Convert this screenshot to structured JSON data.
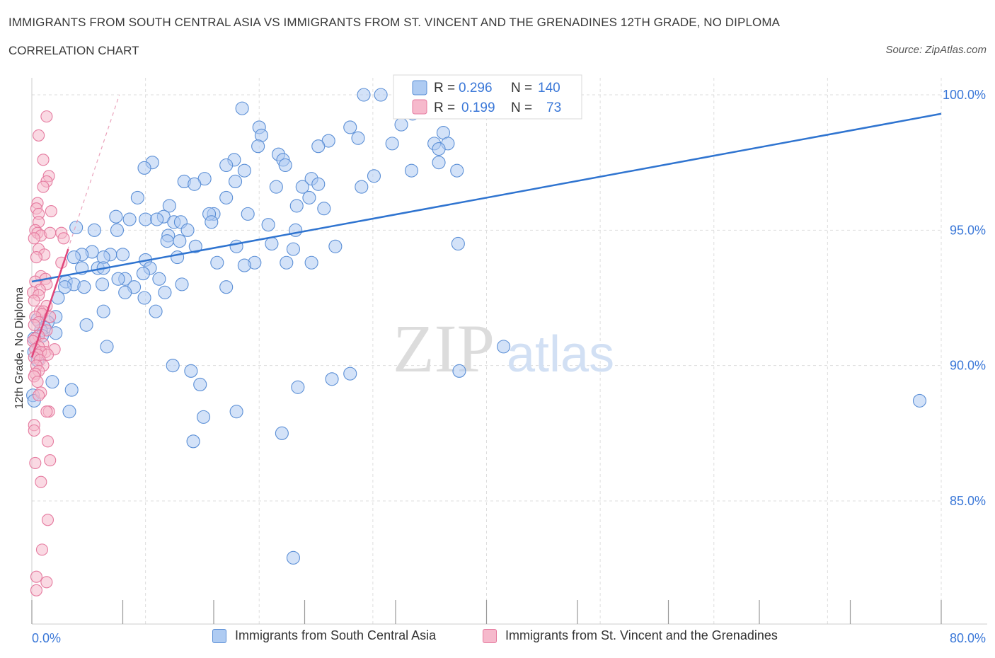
{
  "header": {
    "title": "IMMIGRANTS FROM SOUTH CENTRAL ASIA VS IMMIGRANTS FROM ST. VINCENT AND THE GRENADINES 12TH GRADE, NO DIPLOMA",
    "subtitle": "CORRELATION CHART",
    "source": "Source: ZipAtlas.com"
  },
  "colors": {
    "blue_fill": "#aecbf2",
    "blue_stroke": "#5b8fd6",
    "blue_line": "#2f74d0",
    "pink_fill": "#f6b9cc",
    "pink_stroke": "#e57a9f",
    "pink_line": "#e0457a",
    "axis_label": "#3b78d8",
    "grid": "#dddddd"
  },
  "watermark": {
    "part1": "ZIP",
    "part2": "atlas"
  },
  "legend_box": {
    "row1": {
      "r_label": "R = ",
      "r_value": "0.296",
      "n_label": "N = ",
      "n_value": "140"
    },
    "row2": {
      "r_label": "R = ",
      "r_value": "0.199",
      "n_label": "N = ",
      "n_value": "73"
    }
  },
  "chart_data": {
    "type": "scatter",
    "title": "IMMIGRANTS FROM SOUTH CENTRAL ASIA VS IMMIGRANTS FROM ST. VINCENT AND THE GRENADINES 12TH GRADE, NO DIPLOMA",
    "subtitle": "CORRELATION CHART",
    "ylabel": "12th Grade, No Diploma",
    "xlabel": "",
    "xlim": [
      0,
      80
    ],
    "ylim": [
      80,
      100.5
    ],
    "x_tick_labels": [
      "0.0%",
      "80.0%"
    ],
    "y_tick_labels": [
      {
        "value": 100,
        "label": "100.0%"
      },
      {
        "value": 95,
        "label": "95.0%"
      },
      {
        "value": 90,
        "label": "90.0%"
      },
      {
        "value": 85,
        "label": "85.0%"
      }
    ],
    "grid": true,
    "legend_position": "bottom",
    "series": [
      {
        "name": "Immigrants from South Central Asia",
        "color": "#aecbf2",
        "trend": {
          "x": [
            0,
            80
          ],
          "y": [
            93.1,
            99.3
          ]
        },
        "points": [
          [
            29.2,
            100.0
          ],
          [
            30.7,
            100.0
          ],
          [
            18.5,
            99.5
          ],
          [
            33.5,
            99.3
          ],
          [
            20.0,
            98.8
          ],
          [
            28.0,
            98.8
          ],
          [
            32.5,
            98.9
          ],
          [
            36.2,
            98.6
          ],
          [
            20.2,
            98.5
          ],
          [
            28.7,
            98.4
          ],
          [
            26.1,
            98.3
          ],
          [
            31.7,
            98.2
          ],
          [
            35.4,
            98.2
          ],
          [
            36.6,
            98.2
          ],
          [
            19.9,
            98.1
          ],
          [
            25.2,
            98.1
          ],
          [
            35.8,
            98.0
          ],
          [
            21.7,
            97.8
          ],
          [
            22.1,
            97.6
          ],
          [
            17.8,
            97.6
          ],
          [
            35.8,
            97.5
          ],
          [
            10.6,
            97.5
          ],
          [
            17.1,
            97.4
          ],
          [
            22.3,
            97.4
          ],
          [
            9.9,
            97.3
          ],
          [
            18.7,
            97.2
          ],
          [
            33.4,
            97.2
          ],
          [
            37.4,
            97.2
          ],
          [
            30.1,
            97.0
          ],
          [
            24.6,
            96.9
          ],
          [
            15.2,
            96.9
          ],
          [
            17.9,
            96.8
          ],
          [
            13.4,
            96.8
          ],
          [
            14.3,
            96.7
          ],
          [
            25.2,
            96.7
          ],
          [
            29.0,
            96.6
          ],
          [
            23.8,
            96.6
          ],
          [
            21.5,
            96.6
          ],
          [
            9.3,
            96.2
          ],
          [
            17.1,
            96.2
          ],
          [
            24.4,
            96.2
          ],
          [
            12.1,
            95.9
          ],
          [
            23.3,
            95.9
          ],
          [
            25.7,
            95.8
          ],
          [
            16.0,
            95.6
          ],
          [
            7.4,
            95.5
          ],
          [
            11.6,
            95.5
          ],
          [
            19.0,
            95.6
          ],
          [
            15.6,
            95.6
          ],
          [
            8.6,
            95.4
          ],
          [
            10.0,
            95.4
          ],
          [
            11.0,
            95.4
          ],
          [
            12.5,
            95.3
          ],
          [
            13.1,
            95.3
          ],
          [
            15.8,
            95.3
          ],
          [
            20.8,
            95.2
          ],
          [
            3.9,
            95.1
          ],
          [
            5.5,
            95.0
          ],
          [
            7.5,
            95.0
          ],
          [
            13.7,
            95.0
          ],
          [
            23.2,
            95.0
          ],
          [
            12.0,
            94.8
          ],
          [
            11.9,
            94.6
          ],
          [
            13.0,
            94.6
          ],
          [
            21.1,
            94.5
          ],
          [
            37.5,
            94.5
          ],
          [
            18.0,
            94.4
          ],
          [
            26.7,
            94.4
          ],
          [
            14.4,
            94.4
          ],
          [
            5.3,
            94.2
          ],
          [
            6.9,
            94.1
          ],
          [
            23.0,
            94.3
          ],
          [
            4.4,
            94.1
          ],
          [
            12.8,
            94.0
          ],
          [
            3.7,
            94.0
          ],
          [
            8.0,
            94.1
          ],
          [
            10.0,
            93.9
          ],
          [
            6.3,
            94.0
          ],
          [
            16.3,
            93.8
          ],
          [
            19.6,
            93.8
          ],
          [
            22.4,
            93.8
          ],
          [
            24.6,
            93.8
          ],
          [
            18.7,
            93.7
          ],
          [
            5.8,
            93.6
          ],
          [
            6.3,
            93.6
          ],
          [
            4.4,
            93.6
          ],
          [
            10.4,
            93.6
          ],
          [
            9.8,
            93.4
          ],
          [
            8.2,
            93.2
          ],
          [
            7.6,
            93.2
          ],
          [
            11.2,
            93.2
          ],
          [
            3.0,
            93.1
          ],
          [
            6.2,
            93.0
          ],
          [
            13.2,
            93.0
          ],
          [
            3.7,
            93.0
          ],
          [
            2.9,
            92.9
          ],
          [
            4.6,
            92.9
          ],
          [
            9.0,
            92.9
          ],
          [
            17.1,
            92.9
          ],
          [
            8.2,
            92.7
          ],
          [
            11.7,
            92.7
          ],
          [
            9.9,
            92.5
          ],
          [
            2.3,
            92.5
          ],
          [
            6.3,
            92.0
          ],
          [
            10.9,
            92.0
          ],
          [
            2.1,
            91.8
          ],
          [
            0.5,
            91.7
          ],
          [
            1.4,
            91.6
          ],
          [
            4.8,
            91.5
          ],
          [
            1.1,
            91.4
          ],
          [
            0.8,
            91.3
          ],
          [
            2.1,
            91.2
          ],
          [
            0.9,
            91.1
          ],
          [
            0.2,
            91.0
          ],
          [
            6.6,
            90.7
          ],
          [
            0.2,
            90.5
          ],
          [
            0.5,
            90.2
          ],
          [
            12.4,
            90.0
          ],
          [
            14.0,
            89.8
          ],
          [
            37.6,
            89.8
          ],
          [
            28.0,
            89.7
          ],
          [
            26.4,
            89.5
          ],
          [
            1.8,
            89.4
          ],
          [
            14.8,
            89.3
          ],
          [
            23.4,
            89.2
          ],
          [
            3.5,
            89.1
          ],
          [
            0.1,
            88.9
          ],
          [
            0.2,
            88.7
          ],
          [
            78.1,
            88.7
          ],
          [
            3.3,
            88.3
          ],
          [
            18.0,
            88.3
          ],
          [
            15.1,
            88.1
          ],
          [
            14.2,
            87.2
          ],
          [
            22.0,
            87.5
          ],
          [
            23.0,
            82.9
          ],
          [
            41.5,
            90.7
          ]
        ]
      },
      {
        "name": "Immigrants from St. Vincent and the Grenadines",
        "color": "#f6b9cc",
        "trend": {
          "x": [
            0,
            3.2
          ],
          "y": [
            90.3,
            94.3
          ]
        },
        "trend_dashed": {
          "x": [
            0,
            7.7
          ],
          "y": [
            90.3,
            100.0
          ]
        },
        "points": [
          [
            1.3,
            99.2
          ],
          [
            0.6,
            98.5
          ],
          [
            1.0,
            97.6
          ],
          [
            1.5,
            97.0
          ],
          [
            1.3,
            96.8
          ],
          [
            1.0,
            96.6
          ],
          [
            0.5,
            96.0
          ],
          [
            0.4,
            95.8
          ],
          [
            1.7,
            95.7
          ],
          [
            0.6,
            95.6
          ],
          [
            0.6,
            95.3
          ],
          [
            0.3,
            95.0
          ],
          [
            0.5,
            94.9
          ],
          [
            0.8,
            94.8
          ],
          [
            1.6,
            94.9
          ],
          [
            2.6,
            94.9
          ],
          [
            0.2,
            94.7
          ],
          [
            2.8,
            94.7
          ],
          [
            0.6,
            94.3
          ],
          [
            1.1,
            94.1
          ],
          [
            0.4,
            94.0
          ],
          [
            2.6,
            93.8
          ],
          [
            0.8,
            93.3
          ],
          [
            1.2,
            93.2
          ],
          [
            0.3,
            93.1
          ],
          [
            1.3,
            93.0
          ],
          [
            0.7,
            92.8
          ],
          [
            0.1,
            92.7
          ],
          [
            0.6,
            92.6
          ],
          [
            0.2,
            92.4
          ],
          [
            1.3,
            92.2
          ],
          [
            0.7,
            92.0
          ],
          [
            1.0,
            92.0
          ],
          [
            0.9,
            91.9
          ],
          [
            0.3,
            91.8
          ],
          [
            1.6,
            91.8
          ],
          [
            0.6,
            91.6
          ],
          [
            0.2,
            91.5
          ],
          [
            1.3,
            91.3
          ],
          [
            0.6,
            91.1
          ],
          [
            0.3,
            91.0
          ],
          [
            0.1,
            90.9
          ],
          [
            1.0,
            90.8
          ],
          [
            0.6,
            90.7
          ],
          [
            0.3,
            90.6
          ],
          [
            1.2,
            90.5
          ],
          [
            2.0,
            90.6
          ],
          [
            0.8,
            90.5
          ],
          [
            0.5,
            90.4
          ],
          [
            1.4,
            90.4
          ],
          [
            0.2,
            90.3
          ],
          [
            0.7,
            90.2
          ],
          [
            1.0,
            90.0
          ],
          [
            0.4,
            90.0
          ],
          [
            0.6,
            89.8
          ],
          [
            0.3,
            89.7
          ],
          [
            0.2,
            89.6
          ],
          [
            0.5,
            89.4
          ],
          [
            0.8,
            89.0
          ],
          [
            0.6,
            88.9
          ],
          [
            1.5,
            88.3
          ],
          [
            1.3,
            88.3
          ],
          [
            0.2,
            87.8
          ],
          [
            0.2,
            87.6
          ],
          [
            1.4,
            87.2
          ],
          [
            1.6,
            86.5
          ],
          [
            0.3,
            86.4
          ],
          [
            0.8,
            85.7
          ],
          [
            1.4,
            84.3
          ],
          [
            0.9,
            83.2
          ],
          [
            0.4,
            82.2
          ],
          [
            1.3,
            82.0
          ],
          [
            0.4,
            81.7
          ]
        ]
      }
    ]
  },
  "bottom_legend": {
    "item1": "Immigrants from South Central Asia",
    "item2": "Immigrants from St. Vincent and the Grenadines"
  }
}
